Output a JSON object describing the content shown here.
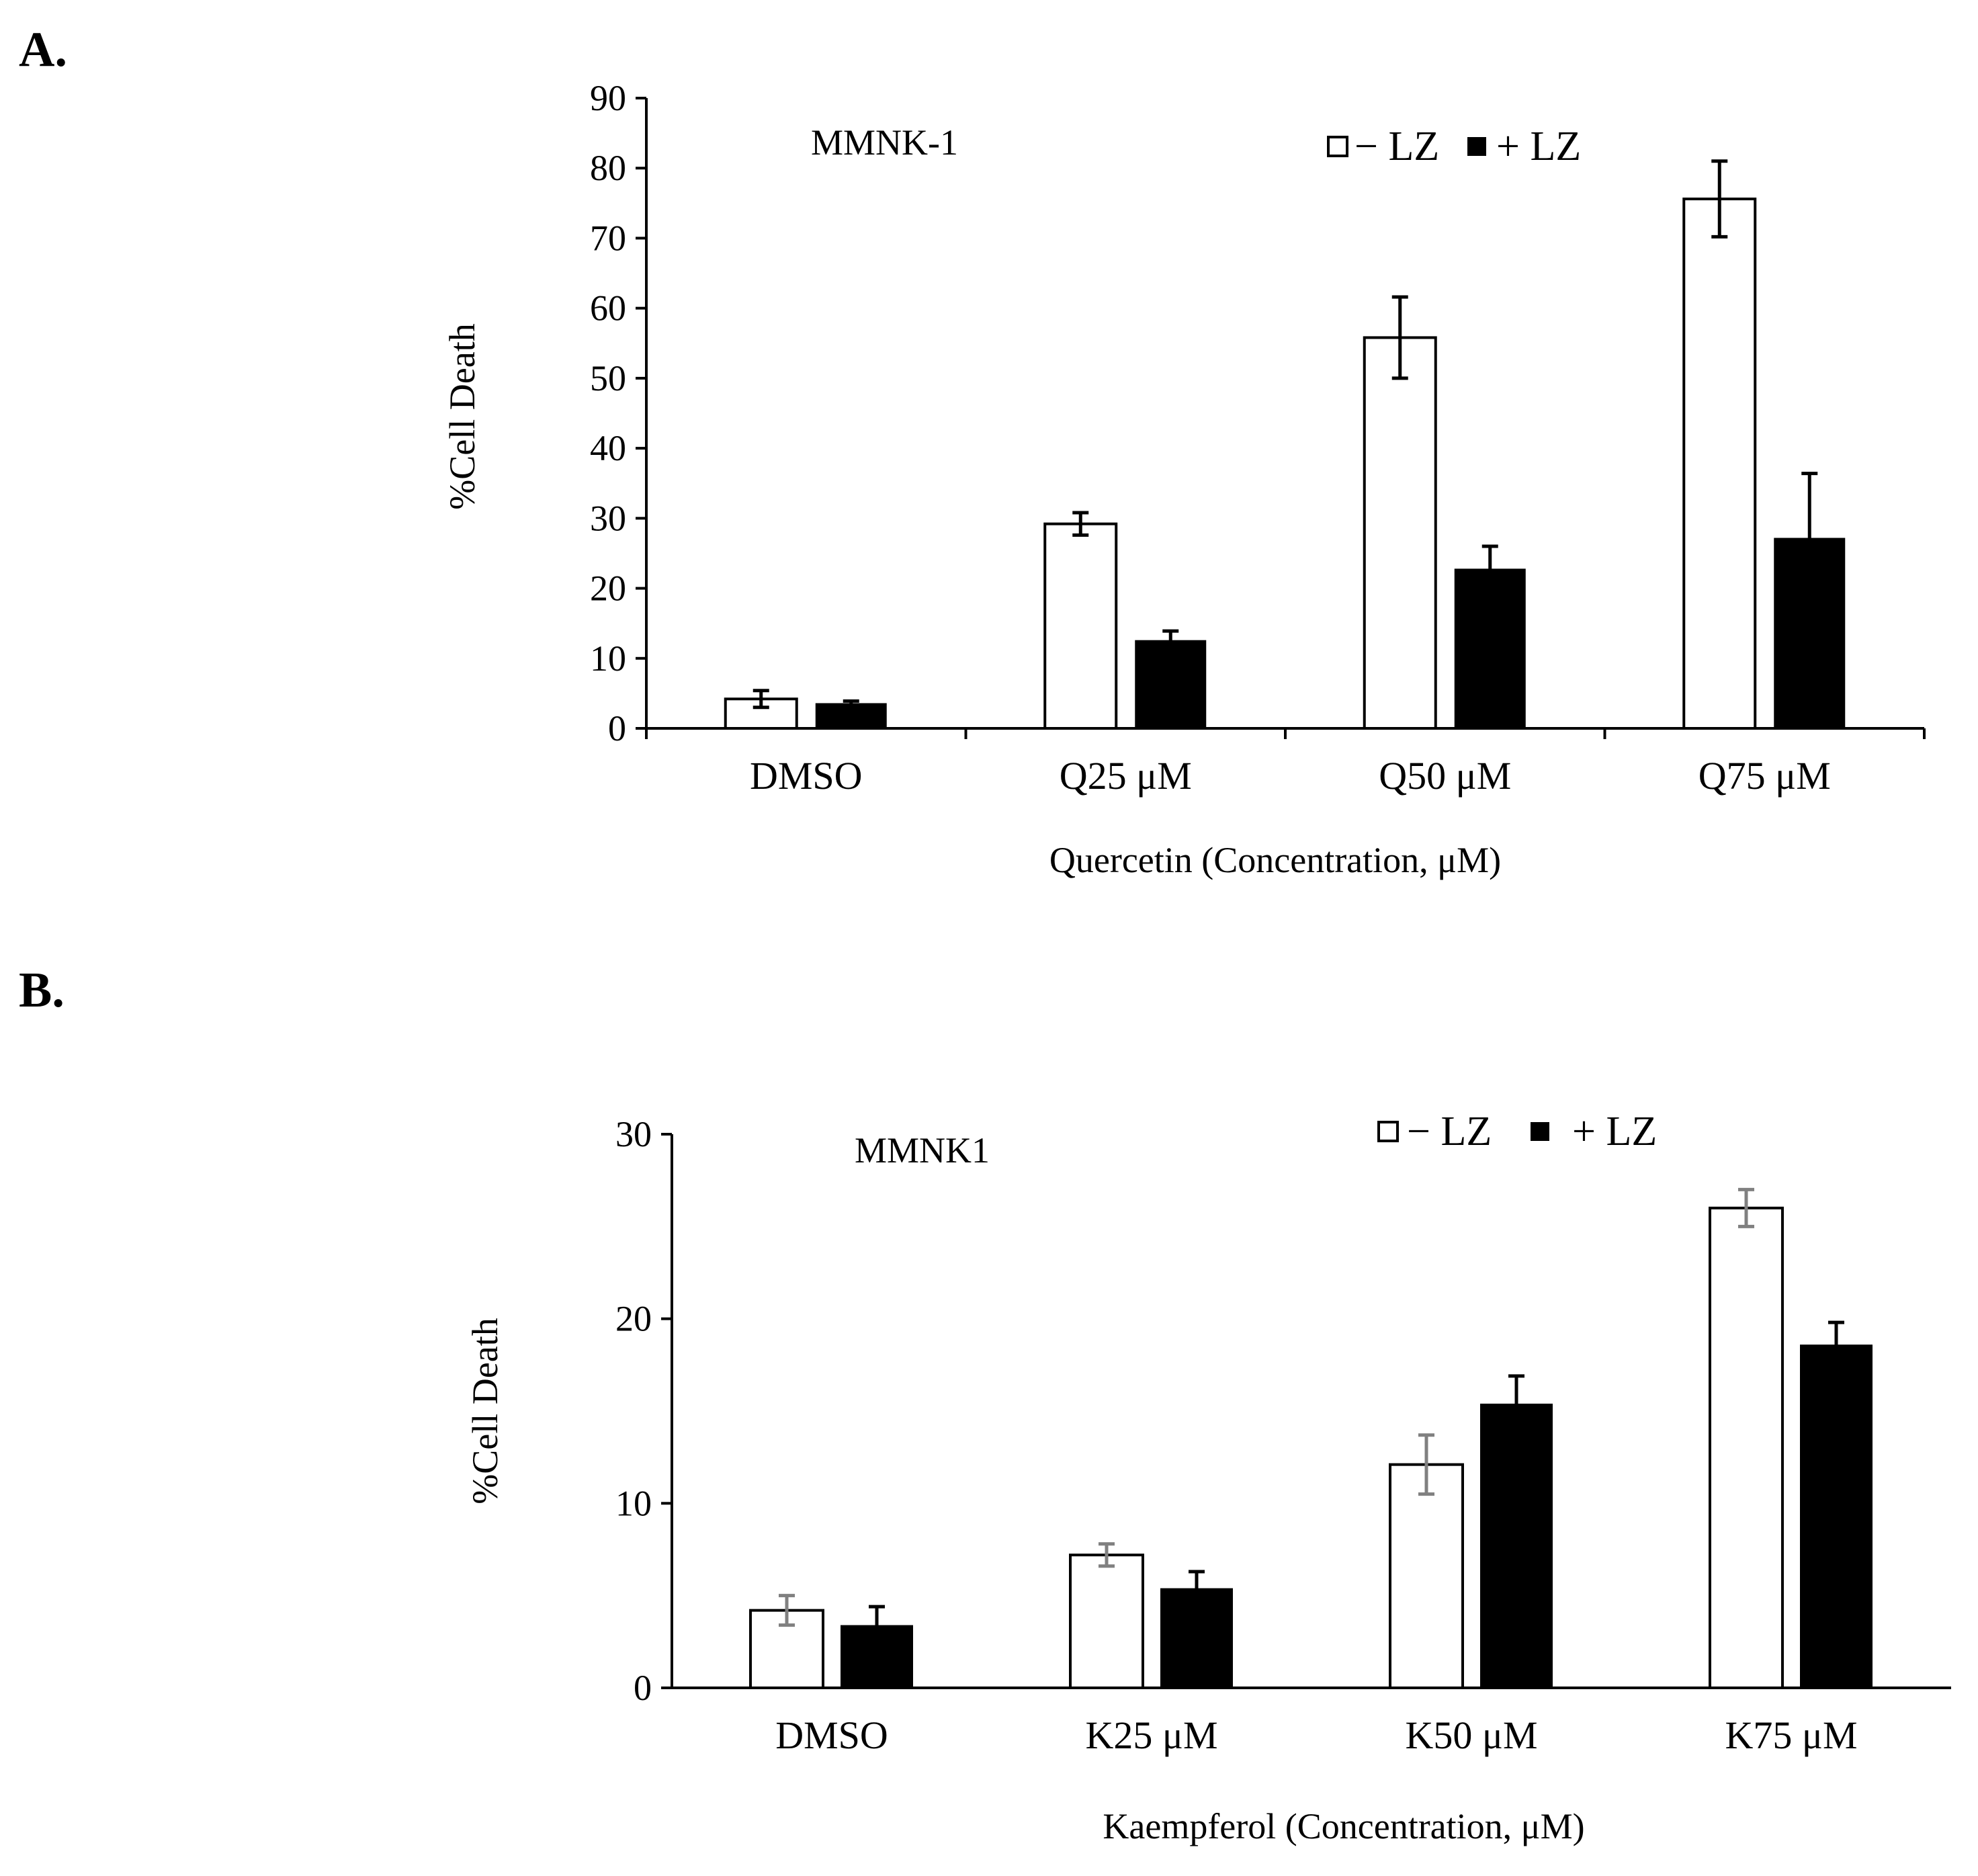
{
  "colors": {
    "minus_lz": "#ffffff",
    "plus_lz": "#000000",
    "axis": "#000000",
    "error_bar_a": "#000000",
    "error_bar_b_minus": "#808080",
    "error_bar_b_plus": "#000000"
  },
  "chart_data": [
    {
      "panel": "A.",
      "type": "bar",
      "cell_line": "MMNK-1",
      "categories": [
        "DMSO",
        "Q25 μM",
        "Q50 μM",
        "Q75 μM"
      ],
      "series": [
        {
          "name": "− LZ",
          "values": [
            4.2,
            29.2,
            55.8,
            75.6
          ],
          "errors": [
            1.2,
            1.6,
            5.8,
            5.4
          ]
        },
        {
          "name": "+ LZ",
          "values": [
            3.6,
            12.6,
            22.8,
            27.2
          ],
          "errors": [
            0.3,
            1.3,
            3.2,
            9.2
          ]
        }
      ],
      "xlabel": "Quercetin (Concentration, μM)",
      "ylabel": "%Cell Death",
      "ylim": [
        0,
        90
      ],
      "yticks": [
        "0",
        "10",
        "20",
        "30",
        "40",
        "50",
        "60",
        "70",
        "80",
        "90"
      ],
      "legend": {
        "minus_label": "− LZ",
        "plus_label": "+ LZ",
        "position": "top-right"
      }
    },
    {
      "panel": "B.",
      "type": "bar",
      "cell_line": "MMNK1",
      "categories": [
        "DMSO",
        "K25 μM",
        "K50 μM",
        "K75 μM"
      ],
      "series": [
        {
          "name": "− LZ",
          "values": [
            4.2,
            7.2,
            12.1,
            26.0
          ],
          "errors": [
            0.8,
            0.6,
            1.6,
            1.0
          ]
        },
        {
          "name": "+ LZ",
          "values": [
            3.4,
            5.4,
            15.4,
            18.6
          ],
          "errors": [
            1.0,
            0.9,
            1.5,
            1.2
          ]
        }
      ],
      "xlabel": "Kaempferol (Concentration, μM)",
      "ylabel": "%Cell Death",
      "ylim": [
        0,
        30
      ],
      "yticks": [
        "0",
        "10",
        "20",
        "30"
      ],
      "legend": {
        "minus_label": "− LZ",
        "plus_label": "+ LZ",
        "position": "top-right"
      }
    }
  ]
}
